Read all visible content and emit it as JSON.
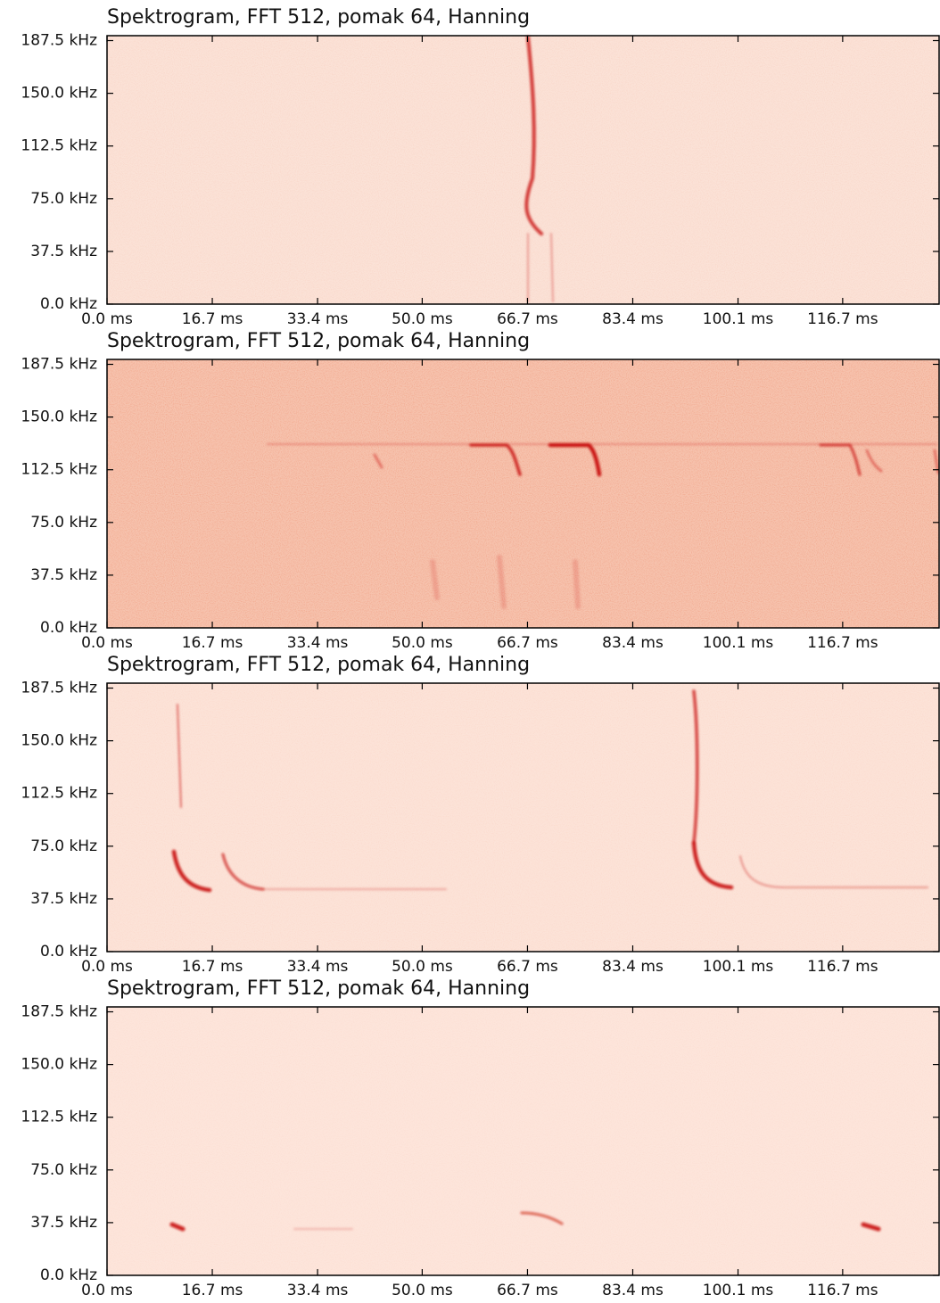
{
  "chart_data": [
    {
      "type": "spectrogram",
      "title": "Spektrogram, FFT 512, pomak 64, Hanning",
      "color": "#fbe2d7",
      "noise": 0.1,
      "xlim": [
        0,
        132
      ],
      "ylim": [
        0,
        191
      ],
      "xticks": [
        {
          "value": 0,
          "label": "0.0 ms"
        },
        {
          "value": 16.7,
          "label": "16.7 ms"
        },
        {
          "value": 33.4,
          "label": "33.4 ms"
        },
        {
          "value": 50.0,
          "label": "50.0 ms"
        },
        {
          "value": 66.7,
          "label": "66.7 ms"
        },
        {
          "value": 83.4,
          "label": "83.4 ms"
        },
        {
          "value": 100.1,
          "label": "100.1 ms"
        },
        {
          "value": 116.7,
          "label": "116.7 ms"
        }
      ],
      "yticks": [
        {
          "value": 0,
          "label": "0.0 kHz"
        },
        {
          "value": 37.5,
          "label": "37.5 kHz"
        },
        {
          "value": 75,
          "label": "75.0 kHz"
        },
        {
          "value": 112.5,
          "label": "112.5 kHz"
        },
        {
          "value": 150,
          "label": "150.0 kHz"
        },
        {
          "value": 187.5,
          "label": "187.5 kHz"
        }
      ]
    },
    {
      "type": "spectrogram",
      "title": "Spektrogram, FFT 512, pomak 64, Hanning",
      "color": "#f6c3ae",
      "noise": 0.35,
      "xlim": [
        0,
        132
      ],
      "ylim": [
        0,
        191
      ],
      "xticks": [
        {
          "value": 0,
          "label": "0.0 ms"
        },
        {
          "value": 16.7,
          "label": "16.7 ms"
        },
        {
          "value": 33.4,
          "label": "33.4 ms"
        },
        {
          "value": 50.0,
          "label": "50.0 ms"
        },
        {
          "value": 66.7,
          "label": "66.7 ms"
        },
        {
          "value": 83.4,
          "label": "83.4 ms"
        },
        {
          "value": 100.1,
          "label": "100.1 ms"
        },
        {
          "value": 116.7,
          "label": "116.7 ms"
        }
      ],
      "yticks": [
        {
          "value": 0,
          "label": "0.0 kHz"
        },
        {
          "value": 37.5,
          "label": "37.5 kHz"
        },
        {
          "value": 75,
          "label": "75.0 kHz"
        },
        {
          "value": 112.5,
          "label": "112.5 kHz"
        },
        {
          "value": 150,
          "label": "150.0 kHz"
        },
        {
          "value": 187.5,
          "label": "187.5 kHz"
        }
      ]
    },
    {
      "type": "spectrogram",
      "title": "Spektrogram, FFT 512, pomak 64, Hanning",
      "color": "#fce3d8",
      "noise": 0.08,
      "xlim": [
        0,
        132
      ],
      "ylim": [
        0,
        191
      ],
      "xticks": [
        {
          "value": 0,
          "label": "0.0 ms"
        },
        {
          "value": 16.7,
          "label": "16.7 ms"
        },
        {
          "value": 33.4,
          "label": "33.4 ms"
        },
        {
          "value": 50.0,
          "label": "50.0 ms"
        },
        {
          "value": 66.7,
          "label": "66.7 ms"
        },
        {
          "value": 83.4,
          "label": "83.4 ms"
        },
        {
          "value": 100.1,
          "label": "100.1 ms"
        },
        {
          "value": 116.7,
          "label": "116.7 ms"
        }
      ],
      "yticks": [
        {
          "value": 0,
          "label": "0.0 kHz"
        },
        {
          "value": 37.5,
          "label": "37.5 kHz"
        },
        {
          "value": 75,
          "label": "75.0 kHz"
        },
        {
          "value": 112.5,
          "label": "112.5 kHz"
        },
        {
          "value": 150,
          "label": "150.0 kHz"
        },
        {
          "value": 187.5,
          "label": "187.5 kHz"
        }
      ]
    },
    {
      "type": "spectrogram",
      "title": "Spektrogram, FFT 512, pomak 64, Hanning",
      "color": "#fde5db",
      "noise": 0.06,
      "xlim": [
        0,
        132
      ],
      "ylim": [
        0,
        191
      ],
      "xticks": [
        {
          "value": 0,
          "label": "0.0 ms"
        },
        {
          "value": 16.7,
          "label": "16.7 ms"
        },
        {
          "value": 33.4,
          "label": "33.4 ms"
        },
        {
          "value": 50.0,
          "label": "50.0 ms"
        },
        {
          "value": 66.7,
          "label": "66.7 ms"
        },
        {
          "value": 83.4,
          "label": "83.4 ms"
        },
        {
          "value": 100.1,
          "label": "100.1 ms"
        },
        {
          "value": 116.7,
          "label": "116.7 ms"
        }
      ],
      "yticks": [
        {
          "value": 0,
          "label": "0.0 kHz"
        },
        {
          "value": 37.5,
          "label": "37.5 kHz"
        },
        {
          "value": 75,
          "label": "75.0 kHz"
        },
        {
          "value": 112.5,
          "label": "112.5 kHz"
        },
        {
          "value": 150,
          "label": "150.0 kHz"
        },
        {
          "value": 187.5,
          "label": "187.5 kHz"
        }
      ]
    }
  ]
}
